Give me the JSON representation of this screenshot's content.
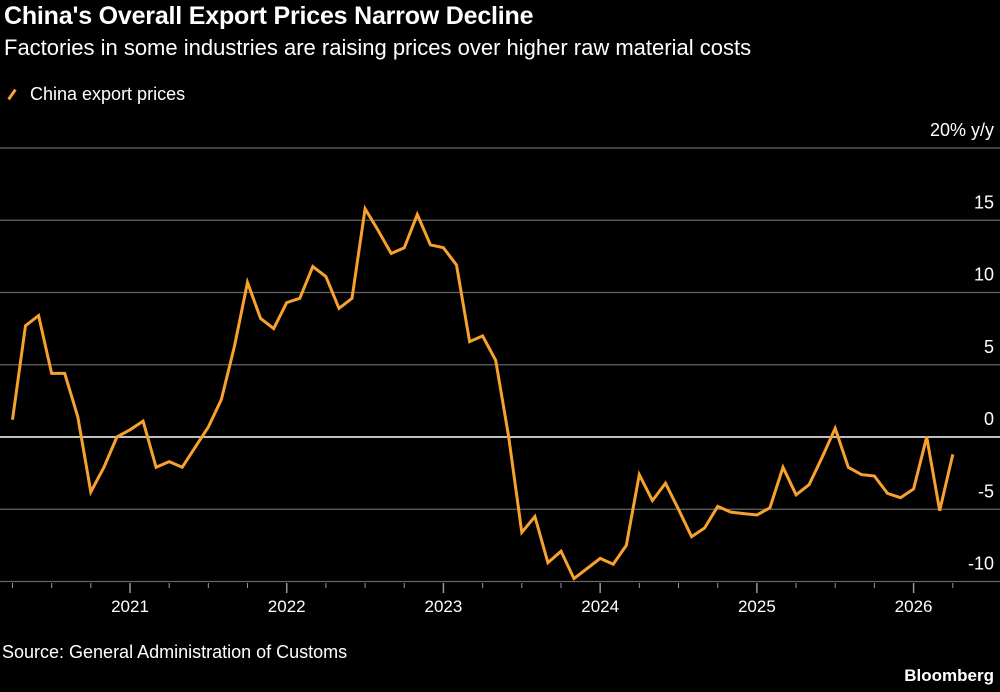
{
  "title": "China's Overall Export Prices Narrow Decline",
  "subtitle": "Factories in some industries are raising prices over higher raw material costs",
  "source": "Source: General Administration of Customs",
  "brand": "Bloomberg",
  "chart_data": {
    "type": "line",
    "title": "China's Overall Export Prices Narrow Decline",
    "subtitle": "Factories in some industries are raising prices over higher raw material costs",
    "legend_position": "top-left",
    "grid": true,
    "y_unit_label": "20% y/y",
    "ylim": [
      -10,
      20
    ],
    "y_ticks": [
      {
        "v": 20,
        "label": "20% y/y"
      },
      {
        "v": 15,
        "label": "15"
      },
      {
        "v": 10,
        "label": "10"
      },
      {
        "v": 5,
        "label": "5"
      },
      {
        "v": 0,
        "label": "0"
      },
      {
        "v": -5,
        "label": "-5"
      },
      {
        "v": -10,
        "label": "-10"
      }
    ],
    "x_ticks": [
      "2021",
      "2022",
      "2023",
      "2024",
      "2025",
      "2026"
    ],
    "x_start": "2020-04",
    "x_end": "2026-04",
    "series": [
      {
        "name": "China export prices",
        "color": "#f7a12f",
        "values": [
          1.2,
          7.7,
          8.4,
          4.4,
          4.4,
          1.4,
          -3.8,
          -2.1,
          0.0,
          0.5,
          1.1,
          -2.1,
          -1.7,
          -2.1,
          -0.7,
          0.7,
          2.6,
          6.3,
          10.7,
          8.2,
          7.5,
          9.3,
          9.6,
          11.8,
          11.1,
          8.9,
          9.6,
          15.8,
          14.3,
          12.7,
          13.1,
          15.4,
          13.3,
          13.1,
          11.9,
          6.6,
          7.0,
          5.3,
          0.0,
          -6.6,
          -5.5,
          -8.7,
          -7.9,
          -9.8,
          -9.1,
          -8.4,
          -8.8,
          -7.5,
          -2.6,
          -4.4,
          -3.2,
          -5.0,
          -6.9,
          -6.3,
          -4.8,
          -5.2,
          -5.3,
          -5.4,
          -4.9,
          -2.1,
          -4.0,
          -3.3,
          -1.4,
          0.6,
          -2.1,
          -2.6,
          -2.7,
          -3.9,
          -4.2,
          -3.6,
          0.0,
          -5.1,
          -1.2
        ]
      }
    ]
  }
}
